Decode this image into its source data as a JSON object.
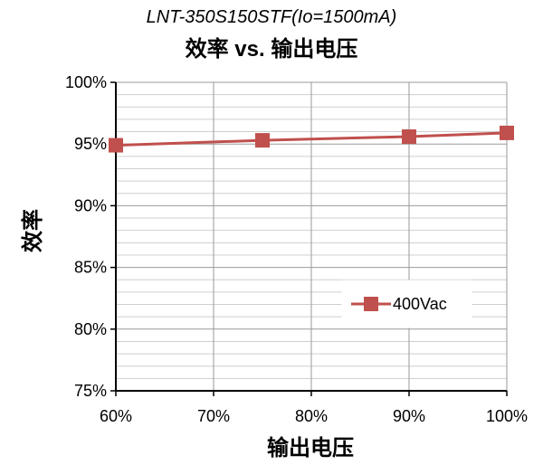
{
  "chart_data": {
    "type": "line",
    "subtitle": "LNT-350S150STF(Io=1500mA)",
    "title": "效率 vs. 输出电压",
    "xlabel": "输出电压",
    "ylabel": "效率",
    "x": [
      60,
      75,
      90,
      100
    ],
    "xlim": [
      60,
      100
    ],
    "ylim": [
      75,
      100
    ],
    "xticks": [
      "60%",
      "70%",
      "80%",
      "90%",
      "100%"
    ],
    "yticks": [
      "75%",
      "80%",
      "85%",
      "90%",
      "95%",
      "100%"
    ],
    "grid": true,
    "legend_position": "right-center",
    "series": [
      {
        "name": "400Vac",
        "values": [
          94.9,
          95.3,
          95.6,
          95.9
        ],
        "color": "#c0504d",
        "marker": "square"
      }
    ]
  }
}
